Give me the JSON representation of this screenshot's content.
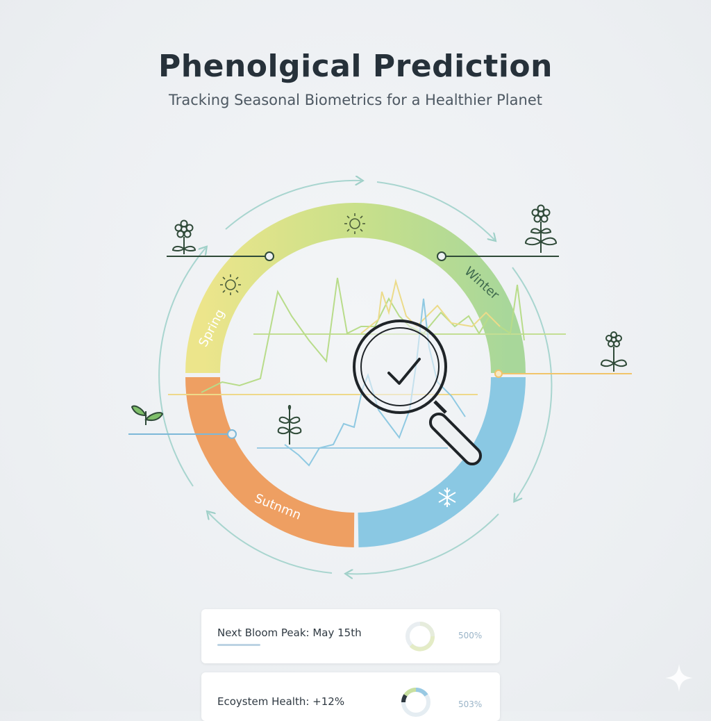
{
  "header": {
    "title": "Phenolgical Prediction",
    "subtitle": "Tracking Seasonal Biometrics for a Healthier Planet"
  },
  "seasons": {
    "spring": "Spring",
    "winter": "Winter",
    "autumn": "Sutnmn"
  },
  "cards": [
    {
      "label": "Next Bloom Peak: May 15th",
      "percent": "500%"
    },
    {
      "label": "Ecoystem Health: +12%",
      "percent": "503%"
    }
  ],
  "colors": {
    "spring": "#e8e38a",
    "summer": "#b9dd8e",
    "winter": "#9fd5b0",
    "autumn": "#ec9c61",
    "blue": "#86c4e0",
    "plant": "#2f4a38"
  }
}
